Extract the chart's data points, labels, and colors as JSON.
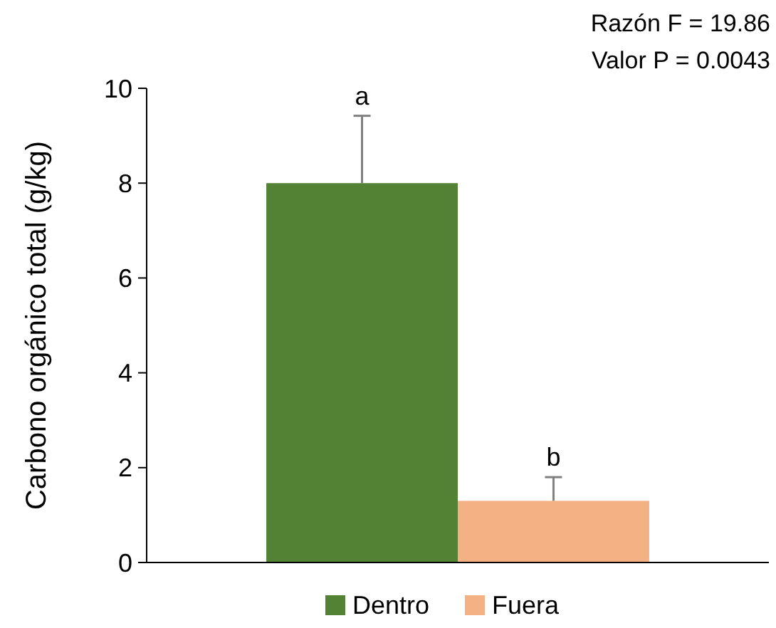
{
  "chart_data": {
    "type": "bar",
    "ylabel": "Carbono orgánico total (g/kg)",
    "categories": [
      null
    ],
    "series": [
      {
        "name": "Dentro",
        "color": "#548235",
        "values": [
          8.0
        ],
        "errors": [
          [
            8.0,
            9.42
          ]
        ],
        "value_labels": [
          "a"
        ]
      },
      {
        "name": "Fuera",
        "color": "#f4b183",
        "values": [
          1.3
        ],
        "errors": [
          [
            1.3,
            1.8
          ]
        ],
        "value_labels": [
          "b"
        ]
      }
    ],
    "ylim": [
      0,
      10
    ],
    "yticks": [
      0,
      2,
      4,
      6,
      8,
      10
    ],
    "grid": false,
    "legend": "bottom",
    "annotations": [
      "Razón F = 19.86",
      "Valor P = 0.0043"
    ]
  }
}
